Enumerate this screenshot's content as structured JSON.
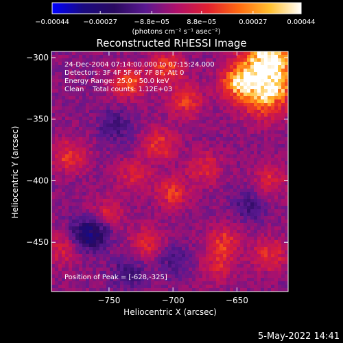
{
  "chart_data": {
    "type": "heatmap",
    "title": "Reconstructed RHESSI Image",
    "xlabel": "Heliocentric X (arcsec)",
    "ylabel": "Heliocentric Y (arcsec)",
    "x_range": [
      -795,
      -610
    ],
    "y_range": [
      -490,
      -295
    ],
    "x_ticks": [
      {
        "value": -750,
        "label": "−750"
      },
      {
        "value": -700,
        "label": "−700"
      },
      {
        "value": -650,
        "label": "−650"
      }
    ],
    "y_ticks": [
      {
        "value": -300,
        "label": "−300"
      },
      {
        "value": -350,
        "label": "−350"
      },
      {
        "value": -400,
        "label": "−400"
      },
      {
        "value": -450,
        "label": "−450"
      }
    ],
    "colorbar": {
      "range": [
        -0.00044,
        0.00044
      ],
      "ticks": [
        {
          "value": -0.00044,
          "label": "−0.00044"
        },
        {
          "value": -0.00027,
          "label": "−0.00027"
        },
        {
          "value": -8.8e-05,
          "label": "−8.8e−05"
        },
        {
          "value": 8.8e-05,
          "label": "8.8e−05"
        },
        {
          "value": 0.00027,
          "label": "0.00027"
        },
        {
          "value": 0.00044,
          "label": "0.00044"
        }
      ],
      "unit_label": "(photons cm⁻² s⁻¹ asec⁻²)",
      "colormap": [
        "#0000ff",
        "#1a0a80",
        "#2a0a60",
        "#5a1890",
        "#b0106a",
        "#e02030",
        "#ff6a10",
        "#ffc030",
        "#ffffff"
      ]
    },
    "info_lines": [
      "24-Dec-2004 07:14:00.000 to 07:15:24.000",
      "Detectors: 3F 4F 5F 6F 7F 8F, Att 0",
      "Energy Range: 25.0 - 50.0 keV",
      "Clean    Total counts: 1.12E+03"
    ],
    "peak_text": "Position of Peak = [-628,-325]",
    "peak": [
      -628,
      -325
    ],
    "hot_regions": [
      {
        "x": -628,
        "y": -325,
        "value": 0.00044
      },
      {
        "x": -625,
        "y": -300,
        "value": 0.0004
      },
      {
        "x": -650,
        "y": -320,
        "value": 0.0003
      },
      {
        "x": -735,
        "y": -320,
        "value": 0.00022
      },
      {
        "x": -705,
        "y": -308,
        "value": 0.0002
      },
      {
        "x": -690,
        "y": -335,
        "value": 0.0002
      },
      {
        "x": -780,
        "y": -380,
        "value": 0.00018
      },
      {
        "x": -710,
        "y": -370,
        "value": 0.00018
      },
      {
        "x": -700,
        "y": -410,
        "value": 0.00018
      },
      {
        "x": -675,
        "y": -390,
        "value": 0.00015
      },
      {
        "x": -752,
        "y": -428,
        "value": 0.00016
      },
      {
        "x": -730,
        "y": -395,
        "value": 0.00014
      },
      {
        "x": -720,
        "y": -450,
        "value": 0.00016
      },
      {
        "x": -660,
        "y": -450,
        "value": 0.00018
      },
      {
        "x": -625,
        "y": -400,
        "value": 0.00014
      },
      {
        "x": -625,
        "y": -460,
        "value": 0.00018
      },
      {
        "x": -785,
        "y": -455,
        "value": 0.00014
      },
      {
        "x": -665,
        "y": -470,
        "value": 0.00012
      }
    ],
    "cold_regions": [
      {
        "x": -760,
        "y": -440,
        "value": -0.00018
      },
      {
        "x": -770,
        "y": -445,
        "value": -0.00016
      },
      {
        "x": -745,
        "y": -355,
        "value": -0.00012
      },
      {
        "x": -735,
        "y": -475,
        "value": -0.00012
      },
      {
        "x": -700,
        "y": -465,
        "value": -0.0001
      },
      {
        "x": -640,
        "y": -420,
        "value": -0.00012
      }
    ]
  },
  "timestamp": "5-May-2022 14:41"
}
